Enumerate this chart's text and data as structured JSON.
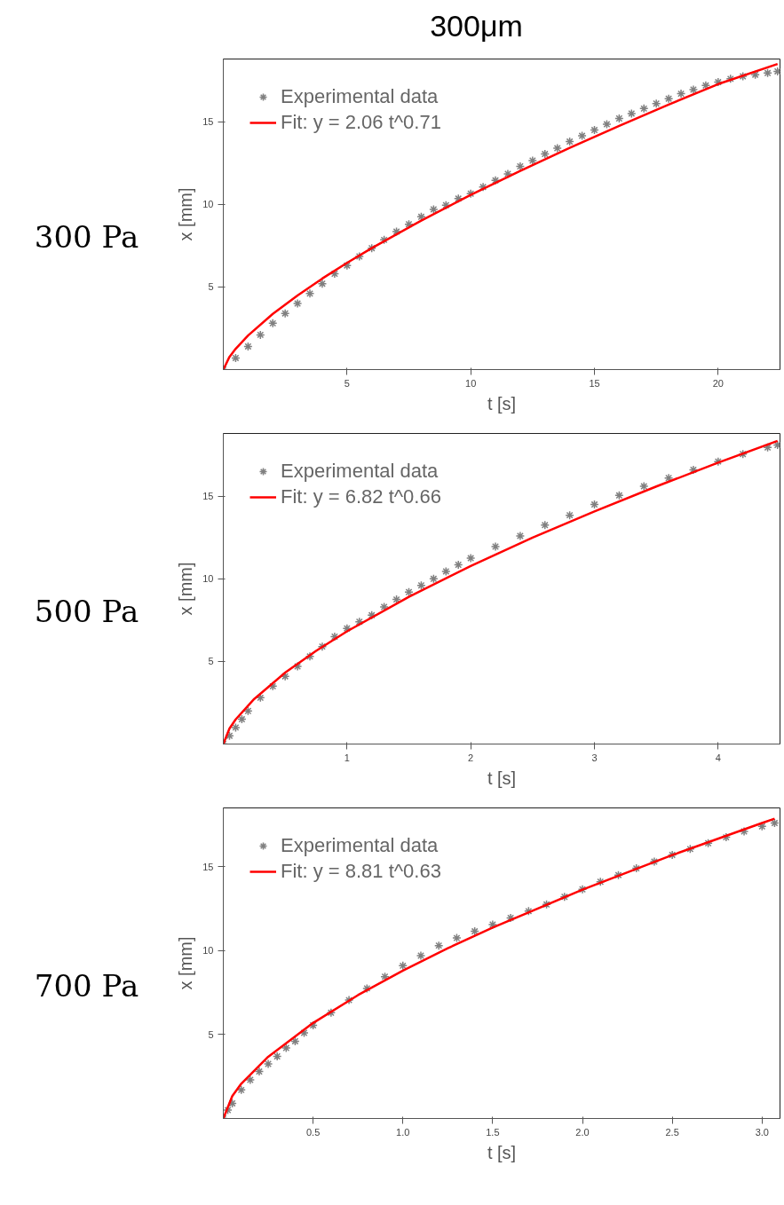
{
  "chart_data": [
    {
      "type": "line",
      "title": "300μm",
      "subtitle": "300 Pa",
      "xlabel": "t [s]",
      "ylabel": "x [mm]",
      "xlim": [
        0,
        22.5
      ],
      "ylim": [
        0,
        18.8
      ],
      "xticks": [
        5,
        10,
        15,
        20
      ],
      "yticks": [
        5,
        10,
        15
      ],
      "grid": false,
      "legend": "top left",
      "series": [
        {
          "name": "Experimental data",
          "type": "scatter",
          "marker": "cross",
          "color": "#808080",
          "x": [
            0,
            0.5,
            1,
            1.5,
            2,
            2.5,
            3,
            3.5,
            4,
            4.5,
            5,
            5.5,
            6,
            6.5,
            7,
            7.5,
            8,
            8.5,
            9,
            9.5,
            10,
            10.5,
            11,
            11.5,
            12,
            12.5,
            13,
            13.5,
            14,
            14.5,
            15,
            15.5,
            16,
            16.5,
            17,
            17.5,
            18,
            18.5,
            19,
            19.5,
            20,
            20.5,
            21,
            21.5,
            22,
            22.4
          ],
          "values": [
            0,
            0.7,
            1.4,
            2.1,
            2.8,
            3.4,
            4.0,
            4.6,
            5.2,
            5.8,
            6.3,
            6.85,
            7.35,
            7.85,
            8.35,
            8.8,
            9.25,
            9.7,
            9.95,
            10.35,
            10.65,
            11.05,
            11.45,
            11.85,
            12.3,
            12.65,
            13.05,
            13.4,
            13.8,
            14.15,
            14.5,
            14.85,
            15.2,
            15.5,
            15.8,
            16.1,
            16.4,
            16.7,
            16.95,
            17.2,
            17.4,
            17.6,
            17.75,
            17.85,
            17.95,
            18.05
          ]
        },
        {
          "name": "Fit: y = 2.06 t^0.71",
          "marker": "none",
          "color": "#ff0000",
          "x": [
            0,
            0.25,
            0.5,
            1,
            2,
            3,
            4,
            5,
            6,
            8,
            10,
            12,
            14,
            16,
            18,
            20,
            22.4
          ],
          "values": [
            0,
            0.77,
            1.26,
            2.06,
            3.37,
            4.49,
            5.51,
            6.46,
            7.35,
            9.02,
            10.57,
            12.02,
            13.42,
            14.75,
            16.04,
            17.28,
            18.5
          ]
        }
      ]
    },
    {
      "type": "line",
      "subtitle": "500 Pa",
      "xlabel": "t [s]",
      "ylabel": "x [mm]",
      "xlim": [
        0,
        4.5
      ],
      "ylim": [
        0,
        18.8
      ],
      "xticks": [
        1,
        2,
        3,
        4
      ],
      "yticks": [
        5,
        10,
        15
      ],
      "grid": false,
      "legend": "top left",
      "series": [
        {
          "name": "Experimental data",
          "type": "scatter",
          "marker": "cross",
          "color": "#808080",
          "x": [
            0,
            0.05,
            0.1,
            0.15,
            0.2,
            0.3,
            0.4,
            0.5,
            0.6,
            0.7,
            0.8,
            0.9,
            1,
            1.1,
            1.2,
            1.3,
            1.4,
            1.5,
            1.6,
            1.7,
            1.8,
            1.9,
            2,
            2.2,
            2.4,
            2.6,
            2.8,
            3,
            3.2,
            3.4,
            3.6,
            3.8,
            4,
            4.2,
            4.4,
            4.48
          ],
          "values": [
            0,
            0.5,
            1.0,
            1.5,
            2.0,
            2.8,
            3.5,
            4.1,
            4.7,
            5.3,
            5.9,
            6.5,
            7.0,
            7.4,
            7.8,
            8.3,
            8.75,
            9.2,
            9.6,
            10.0,
            10.45,
            10.85,
            11.25,
            11.95,
            12.6,
            13.25,
            13.85,
            14.5,
            15.05,
            15.6,
            16.1,
            16.6,
            17.1,
            17.55,
            17.95,
            18.1
          ]
        },
        {
          "name": "Fit: y = 6.82 t^0.66",
          "marker": "none",
          "color": "#ff0000",
          "x": [
            0,
            0.05,
            0.1,
            0.25,
            0.5,
            0.75,
            1,
            1.5,
            2,
            2.5,
            3,
            3.5,
            4,
            4.48
          ],
          "values": [
            0,
            0.94,
            1.49,
            2.73,
            4.32,
            5.64,
            6.82,
            8.91,
            10.78,
            12.49,
            14.08,
            15.59,
            17.03,
            18.35
          ]
        }
      ]
    },
    {
      "type": "line",
      "subtitle": "700 Pa",
      "xlabel": "t [s]",
      "ylabel": "x [mm]",
      "xlim": [
        0,
        3.1
      ],
      "ylim": [
        0,
        18.5
      ],
      "xticks": [
        {
          "value": 0.5,
          "label": "0.5"
        },
        {
          "value": 1,
          "label": "1.0"
        },
        {
          "value": 1.5,
          "label": "1.5"
        },
        {
          "value": 2,
          "label": "2.0"
        },
        {
          "value": 2.5,
          "label": "2.5"
        },
        {
          "value": 3,
          "label": "3.0"
        }
      ],
      "yticks": [
        5,
        10,
        15
      ],
      "grid": false,
      "legend": "top left",
      "series": [
        {
          "name": "Experimental data",
          "type": "scatter",
          "marker": "cross",
          "color": "#808080",
          "x": [
            0,
            0.025,
            0.05,
            0.1,
            0.15,
            0.2,
            0.25,
            0.3,
            0.35,
            0.4,
            0.45,
            0.5,
            0.6,
            0.7,
            0.8,
            0.9,
            1,
            1.1,
            1.2,
            1.3,
            1.4,
            1.5,
            1.6,
            1.7,
            1.8,
            1.9,
            2,
            2.1,
            2.2,
            2.3,
            2.4,
            2.5,
            2.6,
            2.7,
            2.8,
            2.9,
            3,
            3.07
          ],
          "values": [
            0,
            0.5,
            0.9,
            1.7,
            2.3,
            2.8,
            3.25,
            3.7,
            4.2,
            4.6,
            5.1,
            5.55,
            6.3,
            7.05,
            7.75,
            8.45,
            9.1,
            9.7,
            10.3,
            10.75,
            11.15,
            11.55,
            11.95,
            12.35,
            12.75,
            13.2,
            13.65,
            14.1,
            14.5,
            14.9,
            15.3,
            15.7,
            16.05,
            16.4,
            16.75,
            17.1,
            17.4,
            17.6
          ]
        },
        {
          "name": "Fit: y = 8.81 t^0.63",
          "marker": "none",
          "color": "#ff0000",
          "x": [
            0,
            0.05,
            0.1,
            0.25,
            0.5,
            0.75,
            1,
            1.25,
            1.5,
            2,
            2.5,
            3,
            3.07
          ],
          "values": [
            0,
            1.33,
            2.07,
            3.68,
            5.69,
            7.35,
            8.81,
            10.14,
            11.37,
            13.63,
            15.69,
            17.6,
            17.86
          ]
        }
      ]
    }
  ]
}
